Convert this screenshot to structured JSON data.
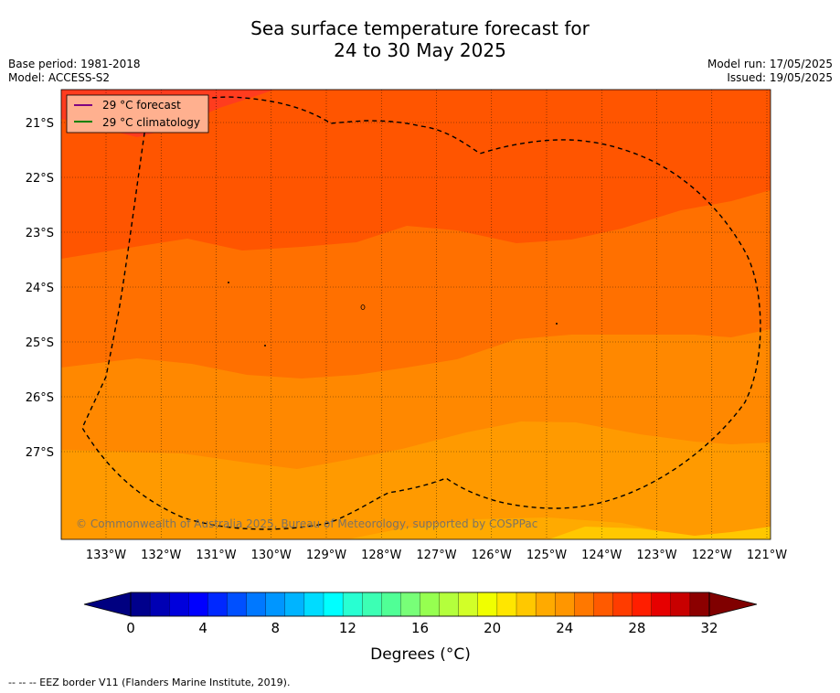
{
  "title": {
    "line1": "Sea surface temperature forecast for",
    "line2": "24 to 30 May 2025"
  },
  "meta": {
    "base_period": "Base period: 1981-2018",
    "model": "Model: ACCESS-S2",
    "model_run": "Model run: 17/05/2025",
    "issued": "Issued: 19/05/2025"
  },
  "map": {
    "lat_labels": [
      "21°S",
      "22°S",
      "23°S",
      "24°S",
      "25°S",
      "26°S",
      "27°S"
    ],
    "lon_labels": [
      "133°W",
      "132°W",
      "131°W",
      "130°W",
      "129°W",
      "128°W",
      "127°W",
      "126°W",
      "125°W",
      "124°W",
      "123°W",
      "122°W",
      "121°W"
    ],
    "copyright": "© Commonwealth of Australia 2025, Bureau of Meteorology, supported by COSPPac",
    "legend": {
      "forecast_label": "29 °C  forecast",
      "climatology_label": "29 °C  climatology",
      "forecast_color": "#800080",
      "climatology_color": "#008000"
    },
    "band_colors": {
      "b29": "#ff5500",
      "b27": "#ff7000",
      "b26": "#ff8800",
      "b25": "#ff9a00",
      "b24": "#ffaa00",
      "b23": "#ffc800",
      "b30": "#ff3c1e"
    }
  },
  "colorbar": {
    "ticks": [
      "0",
      "4",
      "8",
      "12",
      "16",
      "20",
      "24",
      "28",
      "32"
    ],
    "label": "Degrees (°C)",
    "under_color": "#000080",
    "over_color": "#800000",
    "colors": [
      "#00008c",
      "#0000b4",
      "#0000dc",
      "#0000ff",
      "#0028ff",
      "#0050ff",
      "#0078ff",
      "#0096ff",
      "#00b4ff",
      "#00dcff",
      "#00ffff",
      "#28ffd2",
      "#3cffb4",
      "#50ff96",
      "#78ff78",
      "#96ff50",
      "#b4ff3c",
      "#d2ff28",
      "#f0ff00",
      "#ffe600",
      "#ffc800",
      "#ffaa00",
      "#ff9600",
      "#ff7800",
      "#ff5a00",
      "#ff3c00",
      "#ff1e00",
      "#e60000",
      "#c80000",
      "#8c0000"
    ]
  },
  "footer": "--  --  -- EEZ border V11 (Flanders Marine Institute, 2019)."
}
